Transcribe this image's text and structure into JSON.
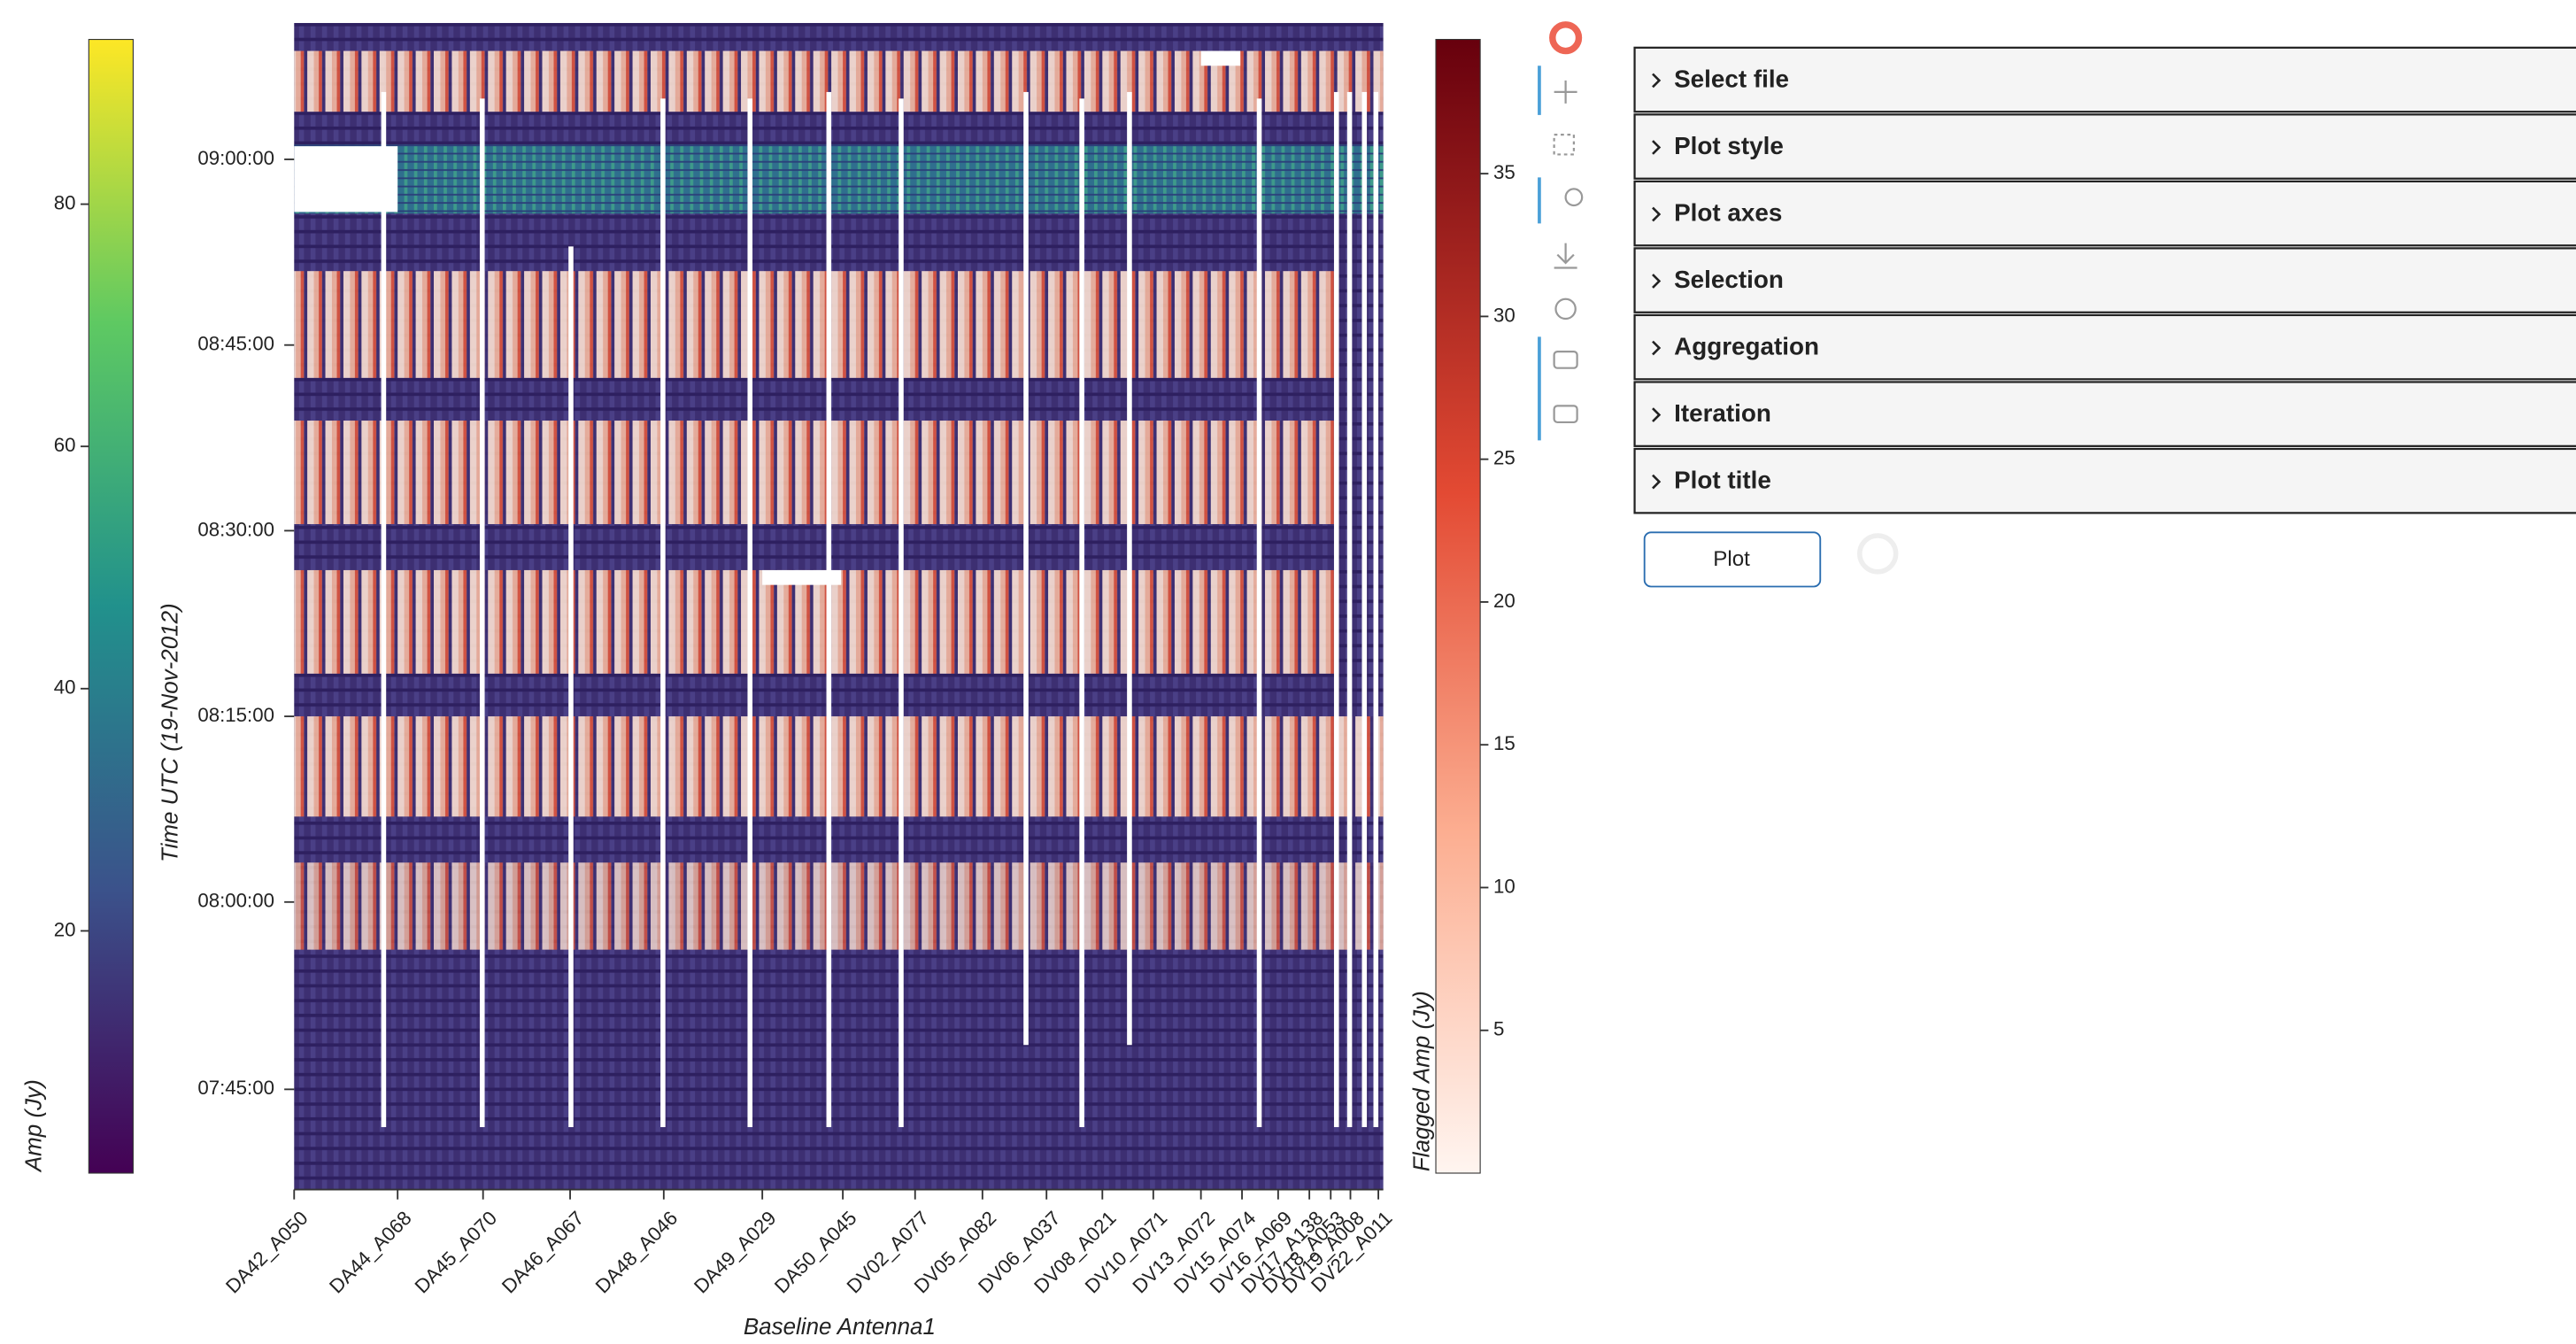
{
  "left_colorbar": {
    "label": "Amp (Jy)",
    "lim": [
      0,
      93.6
    ],
    "ticks": [
      20,
      40,
      60,
      80
    ]
  },
  "right_colorbar": {
    "label": "Flagged Amp (Jy)",
    "lim": [
      0,
      39.7
    ],
    "ticks": [
      5,
      10,
      15,
      20,
      25,
      30,
      35
    ]
  },
  "plot": {
    "y_axis_label": "Time UTC (19-Nov-2012)",
    "x_axis_label": "Baseline Antenna1",
    "y_ticks": [
      "09:00:00",
      "08:45:00",
      "08:30:00",
      "08:15:00",
      "08:00:00",
      "07:45:00"
    ],
    "x_ticks": [
      "DA42_A050",
      "DA44_A068",
      "DA45_A070",
      "DA46_A067",
      "DA48_A046",
      "DA49_A029",
      "DA50_A045",
      "DV02_A077",
      "DV05_A082",
      "DV06_A037",
      "DV08_A021",
      "DV10_A071",
      "DV13_A072",
      "DV15_A074",
      "DV16_A069",
      "DV17_A138",
      "DV18_A053",
      "DV19_A008",
      "DV22_A011"
    ]
  },
  "panels": [
    "Select file",
    "Plot style",
    "Plot axes",
    "Selection",
    "Aggregation",
    "Iteration",
    "Plot title"
  ],
  "button": "Plot"
}
